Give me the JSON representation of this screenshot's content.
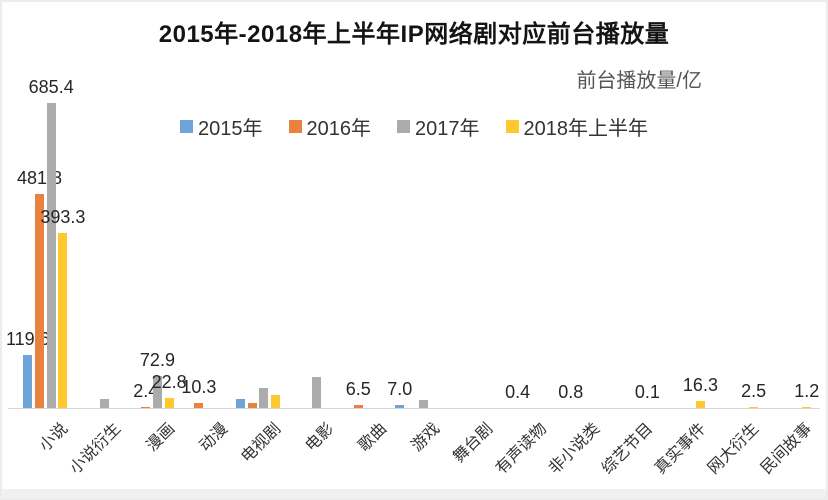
{
  "chart_data": {
    "type": "bar",
    "title": "2015年-2018年上半年IP网络剧对应前台播放量",
    "unit_label": "前台播放量/亿",
    "legend_position": "top-center",
    "grid": false,
    "ylim": [
      0,
      720
    ],
    "categories": [
      "小说",
      "小说衍生",
      "漫画",
      "动漫",
      "电视剧",
      "电影",
      "歌曲",
      "游戏",
      "舞台剧",
      "有声读物",
      "非小说类",
      "综艺节目",
      "真实事件",
      "网大衍生",
      "民间故事"
    ],
    "series": [
      {
        "name": "2015年",
        "color": "#6FA4D8",
        "values": [
          119.6,
          null,
          null,
          null,
          21,
          null,
          null,
          7.0,
          null,
          null,
          null,
          null,
          null,
          null,
          null
        ],
        "labels": [
          "119.6",
          null,
          null,
          null,
          null,
          null,
          null,
          "7.0",
          null,
          null,
          null,
          null,
          null,
          null,
          null
        ]
      },
      {
        "name": "2016年",
        "color": "#E8823E",
        "values": [
          481.8,
          null,
          2.4,
          10.3,
          11,
          null,
          6.5,
          null,
          null,
          0.4,
          0.8,
          null,
          null,
          null,
          null
        ],
        "labels": [
          "481.8",
          null,
          "2.4",
          "10.3",
          null,
          null,
          "6.5",
          null,
          null,
          "0.4",
          "0.8",
          null,
          null,
          null,
          null
        ]
      },
      {
        "name": "2017年",
        "color": "#ABABAB",
        "values": [
          685.4,
          21,
          72.9,
          null,
          44,
          70,
          null,
          17,
          null,
          null,
          null,
          null,
          null,
          null,
          null
        ],
        "labels": [
          "685.4",
          null,
          "72.9",
          null,
          null,
          null,
          null,
          null,
          null,
          null,
          null,
          null,
          null,
          null,
          null
        ]
      },
      {
        "name": "2018年上半年",
        "color": "#FFC82E",
        "values": [
          393.3,
          null,
          22.8,
          null,
          29,
          null,
          null,
          null,
          null,
          null,
          null,
          0.1,
          16.3,
          2.5,
          1.2
        ],
        "labels": [
          "393.3",
          null,
          "22.8",
          null,
          null,
          null,
          null,
          null,
          null,
          null,
          null,
          "0.1",
          "16.3",
          "2.5",
          "1.2"
        ]
      }
    ]
  }
}
